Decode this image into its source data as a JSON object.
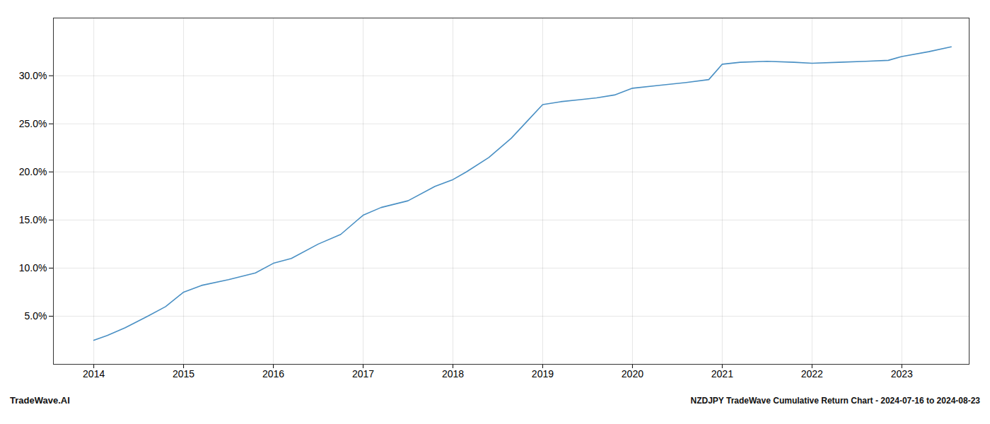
{
  "chart_data": {
    "type": "line",
    "title": "NZDJPY TradeWave Cumulative Return Chart - 2024-07-16 to 2024-08-23",
    "annotations": [
      "TradeWave.AI"
    ],
    "x": [
      2014.0,
      2014.15,
      2014.35,
      2014.6,
      2014.8,
      2015.0,
      2015.2,
      2015.5,
      2015.8,
      2016.0,
      2016.2,
      2016.5,
      2016.75,
      2017.0,
      2017.2,
      2017.5,
      2017.8,
      2018.0,
      2018.15,
      2018.4,
      2018.65,
      2018.85,
      2019.0,
      2019.2,
      2019.4,
      2019.6,
      2019.8,
      2020.0,
      2020.3,
      2020.6,
      2020.85,
      2021.0,
      2021.2,
      2021.5,
      2021.8,
      2022.0,
      2022.3,
      2022.6,
      2022.85,
      2023.0,
      2023.3,
      2023.55
    ],
    "values": [
      2.5,
      3.0,
      3.8,
      5.0,
      6.0,
      7.5,
      8.2,
      8.8,
      9.5,
      10.5,
      11.0,
      12.5,
      13.5,
      15.5,
      16.3,
      17.0,
      18.5,
      19.2,
      20.0,
      21.5,
      23.5,
      25.5,
      27.0,
      27.3,
      27.5,
      27.7,
      28.0,
      28.7,
      29.0,
      29.3,
      29.6,
      31.2,
      31.4,
      31.5,
      31.4,
      31.3,
      31.4,
      31.5,
      31.6,
      32.0,
      32.5,
      33.0
    ],
    "color": "#4a90c4",
    "xlim": [
      2013.55,
      2023.75
    ],
    "xticks": [
      2014,
      2015,
      2016,
      2017,
      2018,
      2019,
      2020,
      2021,
      2022,
      2023
    ],
    "ylim": [
      0,
      36
    ],
    "yticks": [
      {
        "value": 5.0,
        "label": "5.0%"
      },
      {
        "value": 10.0,
        "label": "10.0%"
      },
      {
        "value": 15.0,
        "label": "15.0%"
      },
      {
        "value": 20.0,
        "label": "20.0%"
      },
      {
        "value": 25.0,
        "label": "25.0%"
      },
      {
        "value": 30.0,
        "label": "30.0%"
      }
    ],
    "grid": true
  }
}
